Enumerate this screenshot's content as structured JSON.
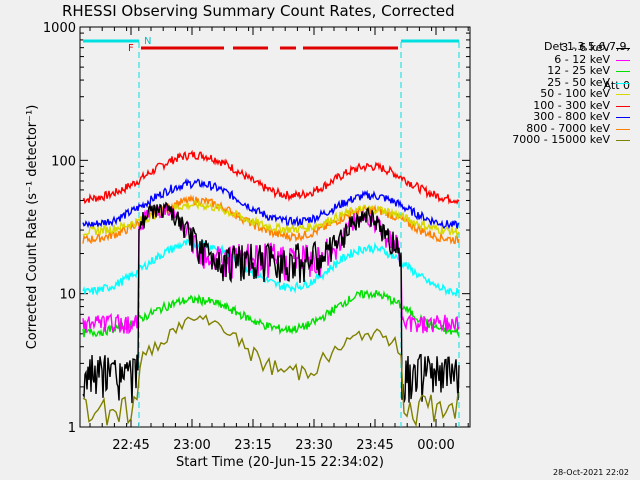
{
  "title": "RHESSI Observing Summary Count Rates, Corrected",
  "timestamp": "28-Oct-2021 22:02",
  "legend_header": [
    "Det 1,3,5,6,7,9,",
    "Att 0"
  ],
  "flags": {
    "F": "F",
    "N": "N"
  },
  "colors": {
    "F": "#e00000",
    "N": "#00e0e0"
  },
  "chart_data": {
    "type": "line",
    "title": "RHESSI Observing Summary Count Rates, Corrected",
    "xlabel": "Start Time (20-Jun-15 22:34:02)",
    "ylabel": "Corrected Count Rate (s⁻¹ detector⁻¹)",
    "y_scale": "log",
    "ylim": [
      1,
      1000
    ],
    "x_units": "minutes after 22:34:02",
    "xlim": [
      0,
      60
    ],
    "x_ticks": [
      {
        "label": "22:45",
        "minute": 11
      },
      {
        "label": "23:00",
        "minute": 26
      },
      {
        "label": "23:15",
        "minute": 41
      },
      {
        "label": "23:30",
        "minute": 56
      },
      {
        "label": "23:45",
        "minute": 71
      },
      {
        "label": "00:00",
        "minute": 86
      }
    ],
    "y_ticks": [
      {
        "label": "1",
        "value": 1
      },
      {
        "label": "10",
        "value": 10
      },
      {
        "label": "100",
        "value": 100
      },
      {
        "label": "1000",
        "value": 1000
      }
    ],
    "series": [
      {
        "name": "3 - 6 keV",
        "color": "#000000"
      },
      {
        "name": "6 - 12 keV",
        "color": "#ff00ff"
      },
      {
        "name": "12 - 25 keV",
        "color": "#00e000"
      },
      {
        "name": "25 - 50 keV",
        "color": "#00ffff"
      },
      {
        "name": "50 - 100 keV",
        "color": "#d8d800"
      },
      {
        "name": "100 - 300 keV",
        "color": "#ff0000"
      },
      {
        "name": "300 - 800 keV",
        "color": "#0000ff"
      },
      {
        "name": "800 - 7000 keV",
        "color": "#ff8000"
      },
      {
        "name": "7000 - 15000 keV",
        "color": "#808000"
      }
    ]
  }
}
